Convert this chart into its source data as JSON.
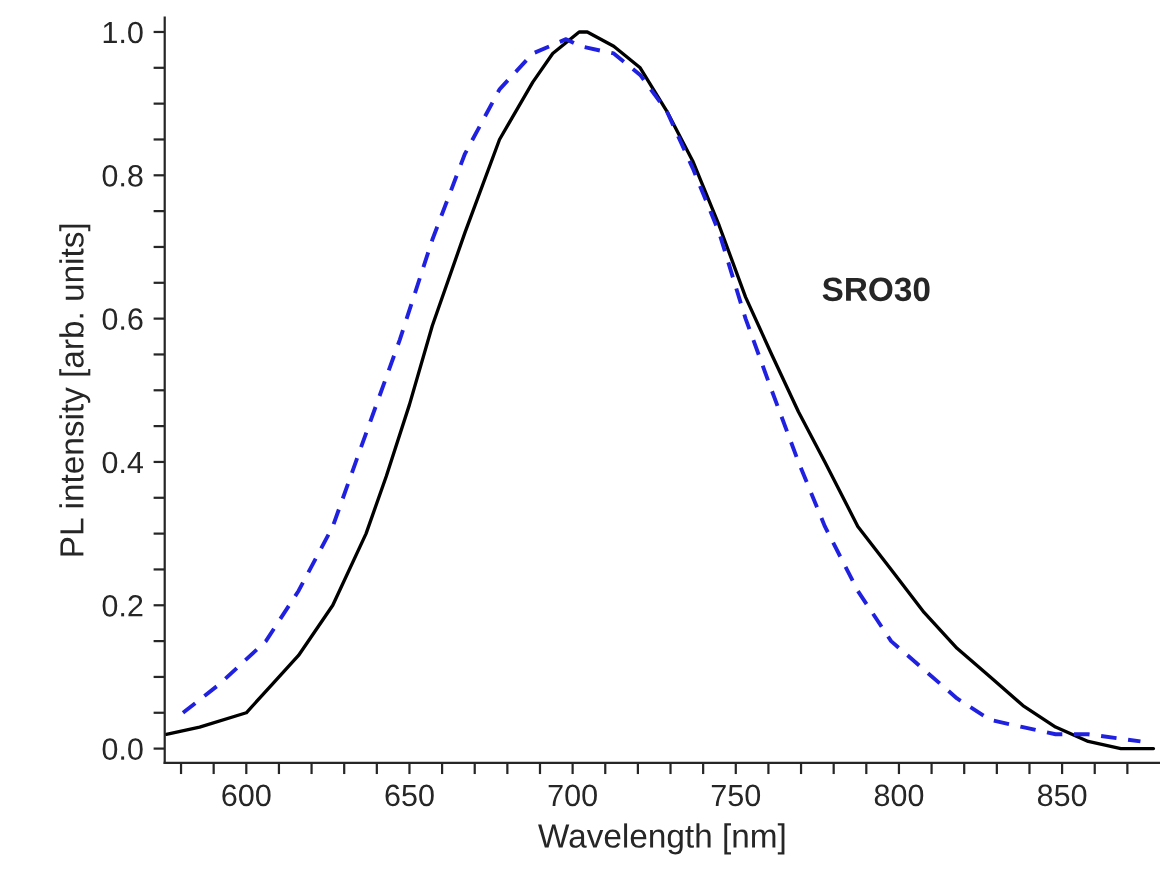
{
  "chart_data": {
    "type": "line",
    "xlabel": "Wavelength [nm]",
    "ylabel": "PL intensity [arb. units]",
    "annotations": [
      "SRO30"
    ],
    "xlim": [
      575,
      880
    ],
    "ylim": [
      -0.02,
      1.02
    ],
    "xticks": [
      {
        "value": 580,
        "label": null
      },
      {
        "value": 590,
        "label": null
      },
      600,
      {
        "value": 610,
        "label": null
      },
      {
        "value": 620,
        "label": null
      },
      {
        "value": 630,
        "label": null
      },
      {
        "value": 640,
        "label": null
      },
      650,
      {
        "value": 660,
        "label": null
      },
      {
        "value": 670,
        "label": null
      },
      {
        "value": 680,
        "label": null
      },
      {
        "value": 690,
        "label": null
      },
      700,
      {
        "value": 710,
        "label": null
      },
      {
        "value": 720,
        "label": null
      },
      {
        "value": 730,
        "label": null
      },
      {
        "value": 740,
        "label": null
      },
      750,
      {
        "value": 760,
        "label": null
      },
      {
        "value": 770,
        "label": null
      },
      {
        "value": 780,
        "label": null
      },
      {
        "value": 790,
        "label": null
      },
      800,
      {
        "value": 810,
        "label": null
      },
      {
        "value": 820,
        "label": null
      },
      {
        "value": 830,
        "label": null
      },
      {
        "value": 840,
        "label": null
      },
      850,
      {
        "value": 860,
        "label": null
      },
      {
        "value": 870,
        "label": null
      }
    ],
    "yticks": [
      {
        "value": 0.0,
        "label": "0.0"
      },
      {
        "value": 0.05,
        "label": null
      },
      {
        "value": 0.1,
        "label": null
      },
      {
        "value": 0.15,
        "label": null
      },
      0.2,
      {
        "value": 0.25,
        "label": null
      },
      {
        "value": 0.3,
        "label": null
      },
      {
        "value": 0.35,
        "label": null
      },
      0.4,
      {
        "value": 0.45,
        "label": null
      },
      {
        "value": 0.5,
        "label": null
      },
      {
        "value": 0.55,
        "label": null
      },
      0.6,
      {
        "value": 0.65,
        "label": null
      },
      {
        "value": 0.7,
        "label": null
      },
      {
        "value": 0.75,
        "label": null
      },
      0.8,
      {
        "value": 0.85,
        "label": null
      },
      {
        "value": 0.9,
        "label": null
      },
      {
        "value": 0.95,
        "label": null
      },
      {
        "value": 1.0,
        "label": "1.0"
      }
    ],
    "grid": false,
    "series": [
      {
        "color": "#000000",
        "line_style": "solid",
        "x": [
          575.5,
          585.7,
          600,
          608,
          616,
          626.5,
          636.7,
          642.9,
          650,
          657,
          667,
          677.6,
          687.8,
          693.9,
          702,
          704.5,
          712.6,
          720.7,
          728.8,
          736.8,
          744.9,
          753,
          761,
          769.2,
          777.3,
          787.4,
          797.6,
          807.7,
          817.8,
          828,
          838,
          848,
          858,
          868,
          878
        ],
        "values": [
          0.02,
          0.03,
          0.05,
          0.09,
          0.13,
          0.2,
          0.3,
          0.38,
          0.48,
          0.59,
          0.72,
          0.85,
          0.93,
          0.97,
          1.0,
          1.0,
          0.98,
          0.95,
          0.89,
          0.82,
          0.73,
          0.63,
          0.55,
          0.47,
          0.4,
          0.31,
          0.25,
          0.19,
          0.14,
          0.1,
          0.06,
          0.03,
          0.01,
          0.0,
          0.0
        ]
      },
      {
        "color": "#2020e0",
        "line_style": "dashed",
        "x": [
          580.6,
          591.8,
          606,
          616,
          626.5,
          636.7,
          647,
          657,
          667,
          677.6,
          687.8,
          698,
          702.4,
          712.6,
          720.7,
          728.8,
          736.8,
          744.9,
          753,
          761,
          769.2,
          777.3,
          787.4,
          797.6,
          807.7,
          817.8,
          828,
          838,
          848,
          858,
          874
        ],
        "values": [
          0.05,
          0.09,
          0.15,
          0.22,
          0.31,
          0.44,
          0.57,
          0.71,
          0.83,
          0.92,
          0.97,
          0.99,
          0.98,
          0.97,
          0.94,
          0.89,
          0.81,
          0.72,
          0.6,
          0.5,
          0.4,
          0.31,
          0.22,
          0.15,
          0.11,
          0.07,
          0.04,
          0.03,
          0.02,
          0.02,
          0.01
        ]
      }
    ]
  }
}
